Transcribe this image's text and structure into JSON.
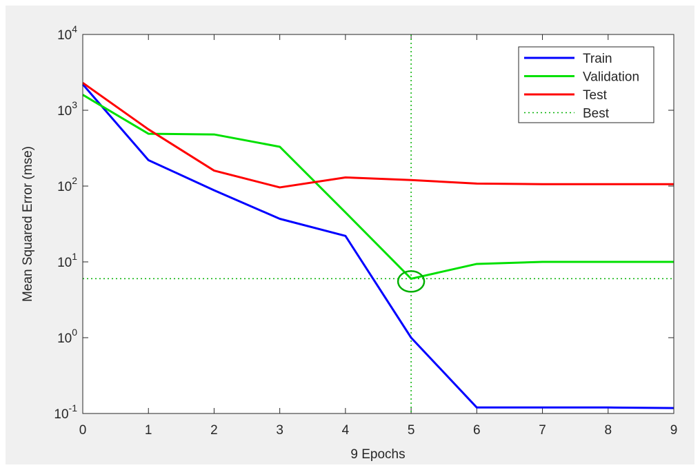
{
  "chart_data": {
    "type": "line",
    "xlabel": "9 Epochs",
    "ylabel": "Mean Squared Error  (mse)",
    "x": [
      0,
      1,
      2,
      3,
      4,
      5,
      6,
      7,
      8,
      9
    ],
    "series": [
      {
        "name": "Train",
        "color": "#0000ff",
        "values": [
          2200,
          220,
          88,
          37,
          22,
          1,
          0.12,
          0.12,
          0.12,
          0.118
        ]
      },
      {
        "name": "Validation",
        "color": "#00e000",
        "values": [
          1600,
          490,
          480,
          330,
          45,
          6,
          9.4,
          10,
          10,
          10
        ]
      },
      {
        "name": "Test",
        "color": "#ff0000",
        "values": [
          2300,
          560,
          160,
          96,
          130,
          120,
          108,
          106,
          106,
          106
        ]
      }
    ],
    "best_name": "Best",
    "best_color": "#00b000",
    "best_epoch": 5,
    "best_value": 6,
    "xlim": [
      0,
      9
    ],
    "xticks": [
      0,
      1,
      2,
      3,
      4,
      5,
      6,
      7,
      8,
      9
    ],
    "ylim": [
      0.1,
      10000
    ],
    "yscale": "log",
    "yticks": [
      {
        "value": 0.1,
        "label": "10",
        "exponent": "-1"
      },
      {
        "value": 1,
        "label": "10",
        "exponent": "0"
      },
      {
        "value": 10,
        "label": "10",
        "exponent": "1"
      },
      {
        "value": 100,
        "label": "10",
        "exponent": "2"
      },
      {
        "value": 1000,
        "label": "10",
        "exponent": "3"
      },
      {
        "value": 10000,
        "label": "10",
        "exponent": "4"
      }
    ],
    "legend": "northeast"
  }
}
